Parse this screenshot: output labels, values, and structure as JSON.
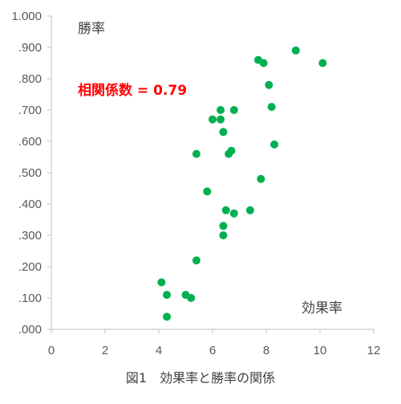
{
  "chart_data": {
    "type": "scatter",
    "title": "",
    "xlabel": "効果率",
    "ylabel": "勝率",
    "xlim": [
      0,
      12
    ],
    "ylim": [
      0,
      1
    ],
    "x_ticks": [
      0,
      2,
      4,
      6,
      8,
      10,
      12
    ],
    "x_tick_labels": [
      "0",
      "2",
      "4",
      "6",
      "8",
      "10",
      "12"
    ],
    "y_ticks": [
      0,
      0.1,
      0.2,
      0.3,
      0.4,
      0.5,
      0.6,
      0.7,
      0.8,
      0.9,
      1.0
    ],
    "y_tick_labels": [
      ".000",
      ".100",
      ".200",
      ".300",
      ".400",
      ".500",
      ".600",
      ".700",
      ".800",
      ".900",
      "1.000"
    ],
    "grid": false,
    "marker_color": "#00b050",
    "annotation": {
      "text": "相関係数 = 0.79",
      "color": "#ff0000"
    },
    "points": [
      {
        "x": 9.1,
        "y": 0.89
      },
      {
        "x": 7.7,
        "y": 0.86
      },
      {
        "x": 7.9,
        "y": 0.85
      },
      {
        "x": 10.1,
        "y": 0.85
      },
      {
        "x": 8.1,
        "y": 0.78
      },
      {
        "x": 8.2,
        "y": 0.71
      },
      {
        "x": 6.3,
        "y": 0.7
      },
      {
        "x": 6.8,
        "y": 0.7
      },
      {
        "x": 6.0,
        "y": 0.67
      },
      {
        "x": 6.3,
        "y": 0.67
      },
      {
        "x": 6.4,
        "y": 0.63
      },
      {
        "x": 8.3,
        "y": 0.59
      },
      {
        "x": 6.7,
        "y": 0.57
      },
      {
        "x": 6.6,
        "y": 0.56
      },
      {
        "x": 5.4,
        "y": 0.56
      },
      {
        "x": 7.8,
        "y": 0.48
      },
      {
        "x": 5.8,
        "y": 0.44
      },
      {
        "x": 6.5,
        "y": 0.38
      },
      {
        "x": 7.4,
        "y": 0.38
      },
      {
        "x": 6.8,
        "y": 0.37
      },
      {
        "x": 6.4,
        "y": 0.33
      },
      {
        "x": 6.4,
        "y": 0.3
      },
      {
        "x": 5.4,
        "y": 0.22
      },
      {
        "x": 4.1,
        "y": 0.15
      },
      {
        "x": 4.3,
        "y": 0.11
      },
      {
        "x": 5.0,
        "y": 0.11
      },
      {
        "x": 5.2,
        "y": 0.1
      },
      {
        "x": 4.3,
        "y": 0.04
      }
    ]
  },
  "caption": "図1　効果率と勝率の関係"
}
